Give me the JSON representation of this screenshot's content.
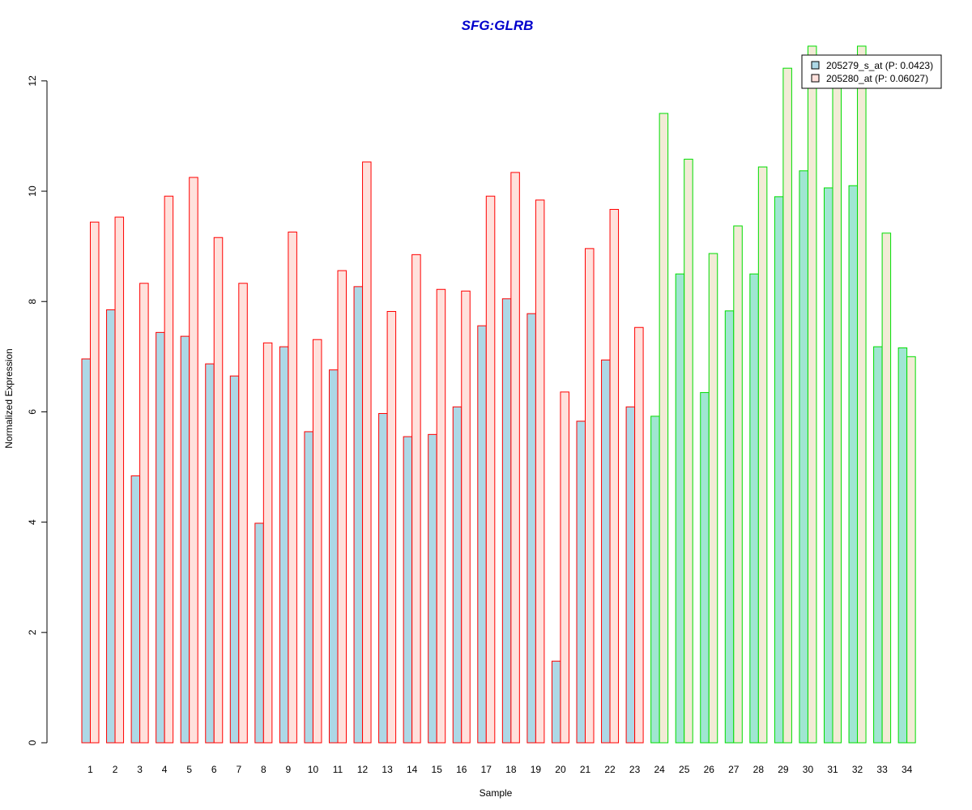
{
  "chart_data": {
    "type": "bar",
    "title": "SFG:GLRB",
    "xlabel": "Sample",
    "ylabel": "Normalized Expression",
    "ylim": [
      0,
      12.6
    ],
    "yticks": [
      0,
      2,
      4,
      6,
      8,
      10,
      12
    ],
    "grid": false,
    "legend_position": "top-right",
    "categories": [
      "1",
      "2",
      "3",
      "4",
      "5",
      "6",
      "7",
      "8",
      "9",
      "10",
      "11",
      "12",
      "13",
      "14",
      "15",
      "16",
      "17",
      "18",
      "19",
      "20",
      "21",
      "22",
      "23",
      "24",
      "25",
      "26",
      "27",
      "28",
      "29",
      "30",
      "31",
      "32",
      "33",
      "34"
    ],
    "groups": [
      {
        "from": 1,
        "to": 23,
        "edge_color": "#ff0000"
      },
      {
        "from": 24,
        "to": 34,
        "edge_color": "#00dd00"
      }
    ],
    "series": [
      {
        "name": "205279_s_at (P: 0.0423)",
        "fill_group1": "#add8e6",
        "fill_group2": "#a0e6d2",
        "values": [
          6.96,
          7.85,
          4.84,
          7.44,
          7.37,
          6.87,
          6.65,
          3.98,
          7.18,
          5.64,
          6.76,
          8.27,
          5.97,
          5.55,
          5.59,
          6.09,
          7.56,
          8.05,
          7.78,
          1.48,
          5.83,
          6.94,
          6.09,
          5.92,
          8.5,
          6.35,
          7.83,
          8.5,
          9.9,
          10.37,
          10.06,
          10.1,
          7.18,
          7.16
        ]
      },
      {
        "name": "205280_at (P: 0.06027)",
        "fill_group1": "#ffe1dc",
        "fill_group2": "#f2ebd6",
        "values": [
          9.44,
          9.53,
          8.33,
          9.91,
          10.25,
          9.16,
          8.33,
          7.25,
          9.26,
          7.31,
          8.56,
          10.53,
          7.82,
          8.85,
          8.22,
          8.19,
          9.91,
          10.34,
          9.84,
          6.36,
          8.96,
          9.67,
          7.53,
          11.41,
          10.58,
          8.87,
          9.37,
          10.44,
          12.23,
          12.63,
          11.95,
          12.63,
          9.24,
          7.0
        ]
      }
    ]
  },
  "colors": {
    "title": "#0000cc",
    "axis": "#000000",
    "legend_border": "#000000"
  }
}
